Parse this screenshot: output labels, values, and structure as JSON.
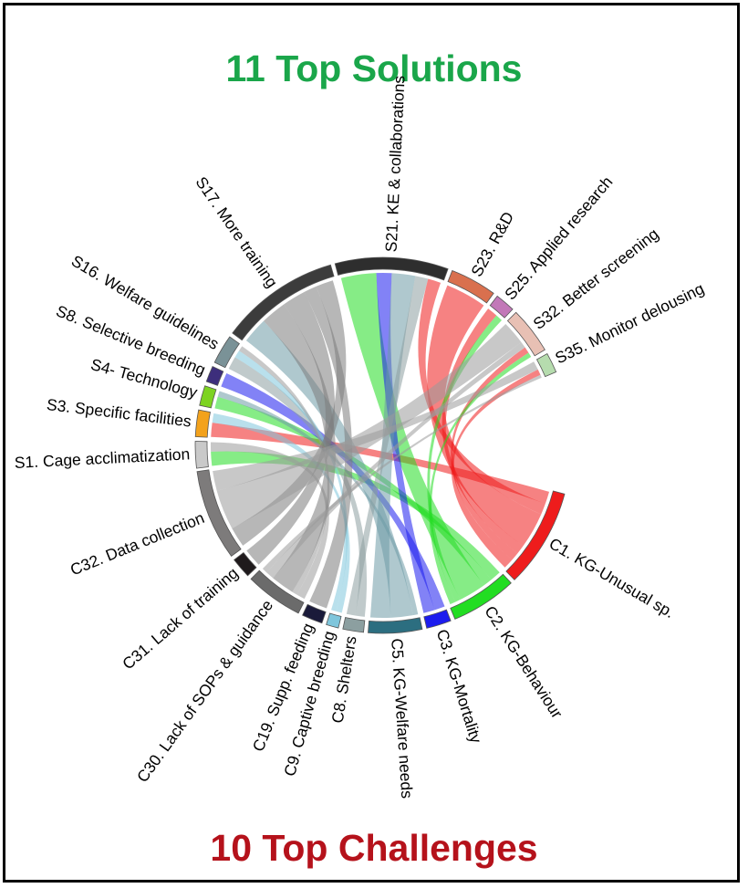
{
  "titles": {
    "solutions": "11 Top Solutions",
    "challenges": "10 Top Challenges",
    "solutions_color": "#1aa64a",
    "challenges_color": "#b5121b"
  },
  "diagram": {
    "type": "chord",
    "solutions": [
      {
        "id": "S1",
        "label": "S1. Cage acclimatization",
        "color": "#c9c9c9",
        "weight": 2
      },
      {
        "id": "S3",
        "label": "S3. Specific facilities",
        "color": "#f3a21c",
        "weight": 2
      },
      {
        "id": "S4",
        "label": "S4- Technology",
        "color": "#7dd321",
        "weight": 1.5
      },
      {
        "id": "S8",
        "label": "S8. Selective breeding",
        "color": "#3d2e7c",
        "weight": 1.2
      },
      {
        "id": "S16",
        "label": "S16. Welfare guidelines",
        "color": "#7a9297",
        "weight": 2.2
      },
      {
        "id": "S17",
        "label": "S17. More training",
        "color": "#3c3c3c",
        "weight": 9
      },
      {
        "id": "S21",
        "label": "S21. KE & collaborations",
        "color": "#2e2e2e",
        "weight": 8.5
      },
      {
        "id": "S23",
        "label": "S23. R&D",
        "color": "#d9704e",
        "weight": 3.5
      },
      {
        "id": "S25",
        "label": "S25. Applied research",
        "color": "#c278b8",
        "weight": 1.5
      },
      {
        "id": "S32",
        "label": "S32. Better screening",
        "color": "#e8c0b4",
        "weight": 3.5
      },
      {
        "id": "S35",
        "label": "S35. Monitor delousing",
        "color": "#b6dcae",
        "weight": 1.5
      }
    ],
    "challenges": [
      {
        "id": "C1",
        "label": "C1. KG-Unusual sp.",
        "color": "#ee1c1c",
        "weight": 12
      },
      {
        "id": "C2",
        "label": "C2. KG-Behaviour",
        "color": "#22dd22",
        "weight": 8
      },
      {
        "id": "C3",
        "label": "C3. KG-Mortality",
        "color": "#1c1cee",
        "weight": 3
      },
      {
        "id": "C5",
        "label": "C5. KG-Welfare needs",
        "color": "#2c6e80",
        "weight": 6.5
      },
      {
        "id": "C8",
        "label": "C8. Shelters",
        "color": "#8c9fa0",
        "weight": 2.5
      },
      {
        "id": "C9",
        "label": "C9. Captive breeding",
        "color": "#7fc6dc",
        "weight": 1.5
      },
      {
        "id": "C19",
        "label": "C19. Supp. feeding",
        "color": "#1a1a3a",
        "weight": 2.5
      },
      {
        "id": "C30",
        "label": "C30. Lack of SOPs & guidance",
        "color": "#6b6b6b",
        "weight": 7
      },
      {
        "id": "C31",
        "label": "C31. Lack of training",
        "color": "#1f1a1c",
        "weight": 2.5
      },
      {
        "id": "C32",
        "label": "C32. Data collection",
        "color": "#7d7b7b",
        "weight": 11
      }
    ],
    "links": [
      [
        "S1",
        "C2",
        1.2
      ],
      [
        "S1",
        "C30",
        0.8
      ],
      [
        "S3",
        "C1",
        1.2
      ],
      [
        "S3",
        "C9",
        0.8
      ],
      [
        "S4",
        "C2",
        1.0
      ],
      [
        "S4",
        "C5",
        0.5
      ],
      [
        "S8",
        "C3",
        1.2
      ],
      [
        "S16",
        "C8",
        1.2
      ],
      [
        "S16",
        "C9",
        0.7
      ],
      [
        "S16",
        "C30",
        0.5
      ],
      [
        "S17",
        "C5",
        2.2
      ],
      [
        "S17",
        "C30",
        2.2
      ],
      [
        "S17",
        "C31",
        2.0
      ],
      [
        "S17",
        "C19",
        1.1
      ],
      [
        "S17",
        "C32",
        1.5
      ],
      [
        "S21",
        "C2",
        3.0
      ],
      [
        "S21",
        "C3",
        1.3
      ],
      [
        "S21",
        "C5",
        2.0
      ],
      [
        "S21",
        "C8",
        1.1
      ],
      [
        "S21",
        "C1",
        1.1
      ],
      [
        "S23",
        "C1",
        3.5
      ],
      [
        "S25",
        "C1",
        0.9
      ],
      [
        "S25",
        "C2",
        0.6
      ],
      [
        "S32",
        "C32",
        3.0
      ],
      [
        "S32",
        "C30",
        0.8
      ],
      [
        "S32",
        "C1",
        0.8
      ],
      [
        "S32",
        "C2",
        0.6
      ],
      [
        "S35",
        "C32",
        1.5
      ],
      [
        "S35",
        "C1",
        1.0
      ],
      [
        "S35",
        "C30",
        0.5
      ]
    ]
  }
}
